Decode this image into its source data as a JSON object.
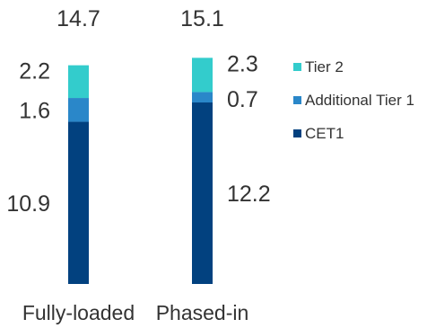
{
  "chart_data": {
    "type": "bar",
    "stacked": true,
    "categories": [
      "Fully-loaded",
      "Phased-in"
    ],
    "totals": [
      "14.7",
      "15.1"
    ],
    "series": [
      {
        "name": "CET1",
        "values": [
          10.9,
          12.2
        ],
        "labels": [
          "10.9",
          "12.2"
        ],
        "color": "#02417f"
      },
      {
        "name": "Additional Tier 1",
        "values": [
          1.6,
          0.7
        ],
        "labels": [
          "1.6",
          "0.7"
        ],
        "color": "#2a87c9"
      },
      {
        "name": "Tier 2",
        "values": [
          2.2,
          2.3
        ],
        "labels": [
          "2.2",
          "2.3"
        ],
        "color": "#33cccc"
      }
    ],
    "legend": {
      "position": "right",
      "order": [
        "Tier 2",
        "Additional Tier 1",
        "CET1"
      ]
    },
    "grid": false,
    "title": "",
    "xlabel": "",
    "ylabel": "",
    "ylim": [
      0,
      15.1
    ]
  }
}
